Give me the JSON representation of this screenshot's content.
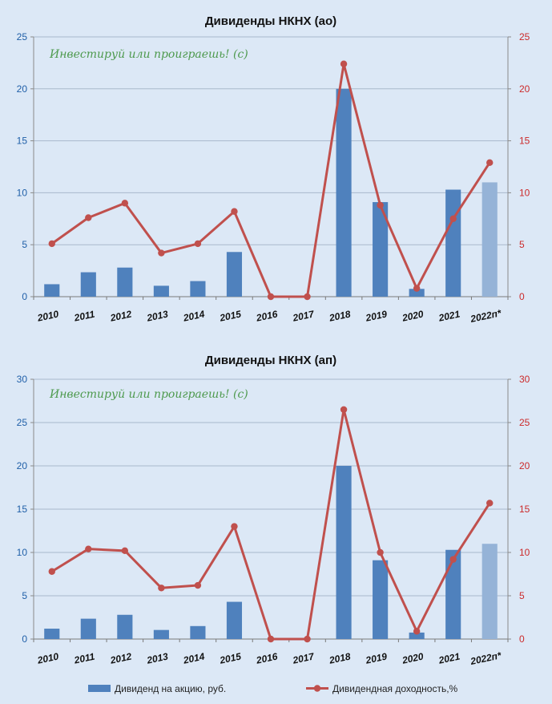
{
  "watermark": "Инвестируй или проиграешь! (с)",
  "legend": {
    "bars_label": "Дивиденд на акцию, руб.",
    "line_label": "Дивидендная доходность,%"
  },
  "colors": {
    "bar": "#4f81bd",
    "bar_forecast": "#95b3d7",
    "line": "#c0504d",
    "left_axis_text": "#1f5fa8",
    "right_axis_text": "#cc2a2a",
    "background": "#dce8f6"
  },
  "chart_data": [
    {
      "type": "bar",
      "title": "Дивиденды НКНХ (ао)",
      "categories": [
        "2010",
        "2011",
        "2012",
        "2013",
        "2014",
        "2015",
        "2016",
        "2017",
        "2018",
        "2019",
        "2020",
        "2021",
        "2022п*"
      ],
      "ylim": [
        0,
        25
      ],
      "yticks": [
        0,
        5,
        10,
        15,
        20,
        25
      ],
      "y2lim": [
        0,
        25
      ],
      "y2ticks": [
        0,
        5,
        10,
        15,
        20,
        25
      ],
      "grid": true,
      "legend_position": "bottom",
      "series": [
        {
          "name": "Дивиденд на акцию, руб.",
          "type": "bar",
          "values": [
            1.2,
            2.35,
            2.8,
            1.05,
            1.5,
            4.3,
            0,
            0,
            20.0,
            9.1,
            0.75,
            10.3,
            11.0
          ],
          "forecast_index": 12
        },
        {
          "name": "Дивидендная доходность,%",
          "type": "line",
          "axis": "right",
          "values": [
            5.1,
            7.6,
            9.0,
            4.2,
            5.1,
            8.2,
            0,
            0,
            22.4,
            8.8,
            0.8,
            7.5,
            12.9
          ]
        }
      ]
    },
    {
      "type": "bar",
      "title": "Дивиденды НКНХ (ап)",
      "categories": [
        "2010",
        "2011",
        "2012",
        "2013",
        "2014",
        "2015",
        "2016",
        "2017",
        "2018",
        "2019",
        "2020",
        "2021",
        "2022п*"
      ],
      "ylim": [
        0,
        30
      ],
      "yticks": [
        0,
        5,
        10,
        15,
        20,
        25,
        30
      ],
      "y2lim": [
        0,
        30
      ],
      "y2ticks": [
        0,
        5,
        10,
        15,
        20,
        25,
        30
      ],
      "grid": true,
      "legend_position": "bottom",
      "series": [
        {
          "name": "Дивиденд на акцию, руб.",
          "type": "bar",
          "values": [
            1.2,
            2.35,
            2.8,
            1.05,
            1.5,
            4.3,
            0,
            0,
            20.0,
            9.1,
            0.75,
            10.3,
            11.0
          ],
          "forecast_index": 12
        },
        {
          "name": "Дивидендная доходность,%",
          "type": "line",
          "axis": "right",
          "values": [
            7.8,
            10.4,
            10.2,
            5.9,
            6.2,
            13.0,
            0,
            0,
            26.5,
            10.0,
            0.9,
            9.2,
            15.7
          ]
        }
      ]
    }
  ]
}
